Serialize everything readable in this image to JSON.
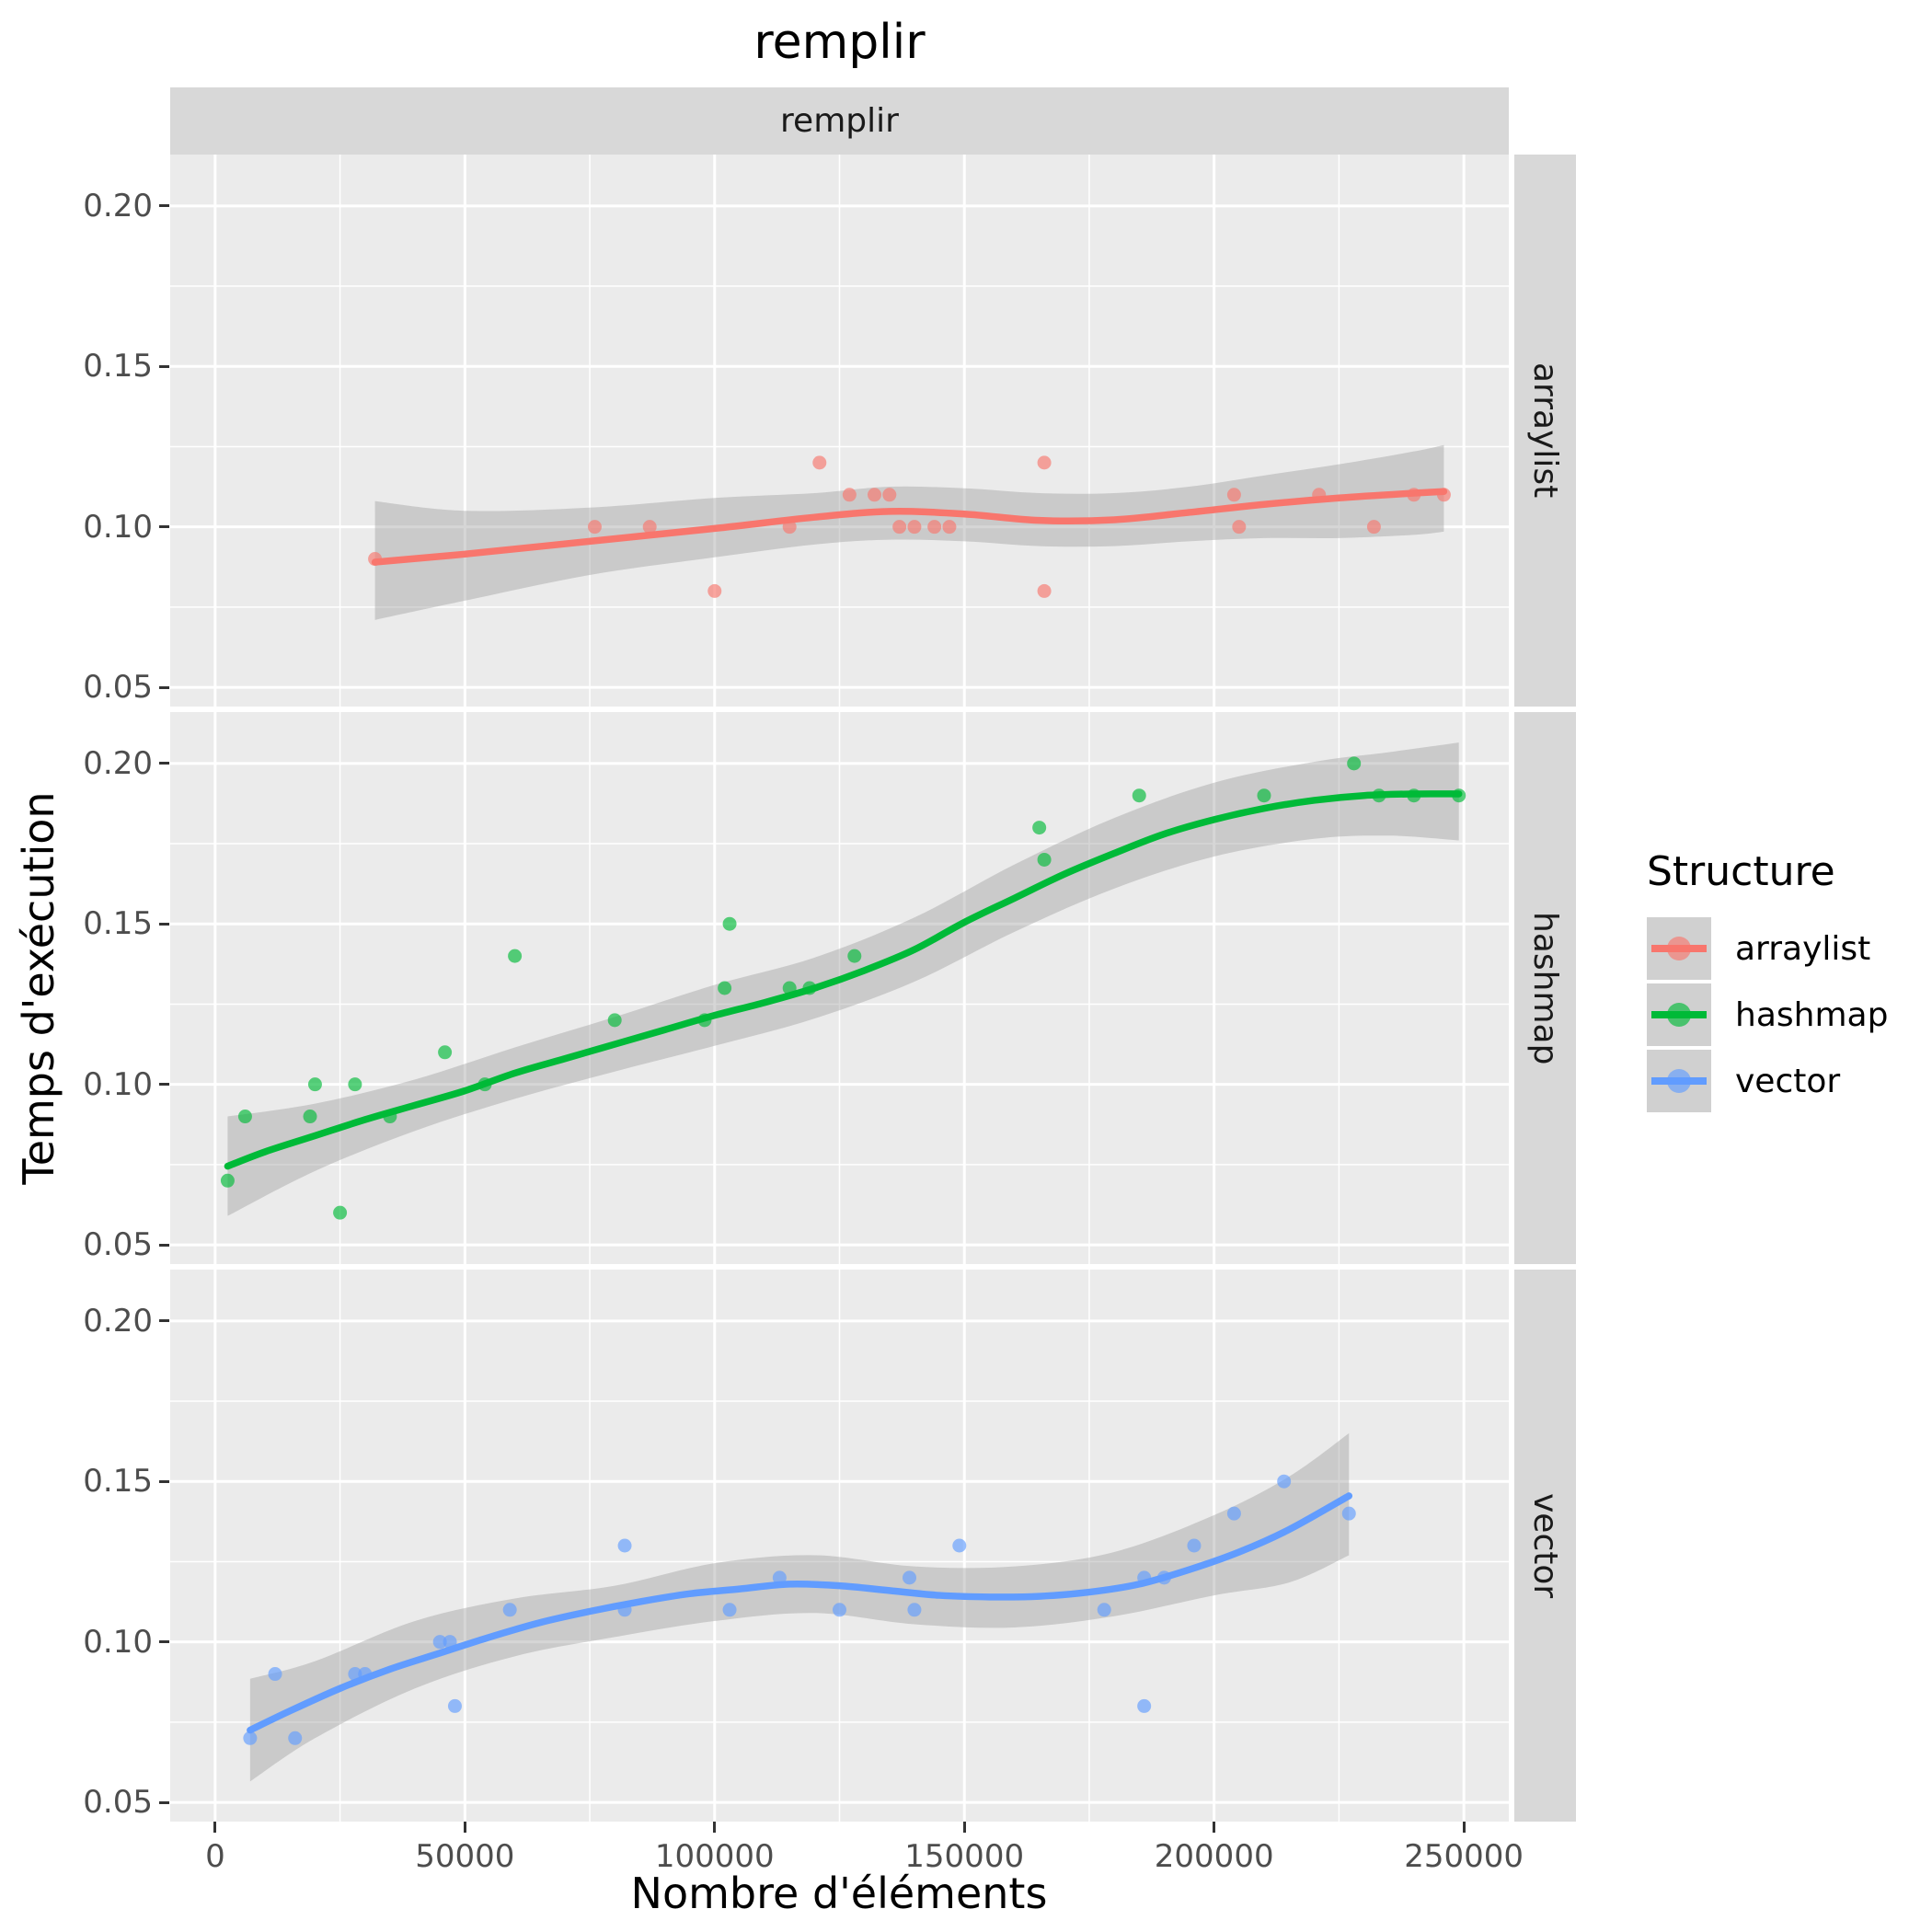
{
  "chart_data": {
    "type": "scatter",
    "title": "remplir",
    "facet_strip": "remplir",
    "xlabel": "Nombre d'éléments",
    "ylabel": "Temps d'exécution",
    "grid": "major+minor",
    "legend": {
      "title": "Structure",
      "position": "right",
      "entries": [
        {
          "label": "arraylist",
          "color": "#F8766D"
        },
        {
          "label": "hashmap",
          "color": "#00BA38"
        },
        {
          "label": "vector",
          "color": "#619CFF"
        }
      ]
    },
    "x_axis": {
      "lim": [
        -9000,
        259000
      ],
      "ticks": [
        0,
        50000,
        100000,
        150000,
        200000,
        250000
      ],
      "tick_labels": [
        "0",
        "50000",
        "100000",
        "150000",
        "200000",
        "250000"
      ],
      "minor_ticks": [
        25000,
        75000,
        125000,
        175000,
        225000
      ]
    },
    "y_axis": {
      "lim": [
        0.044,
        0.216
      ],
      "ticks": [
        0.2,
        0.15,
        0.1,
        0.05
      ],
      "tick_labels": [
        "0.20",
        "0.15",
        "0.10",
        "0.05"
      ],
      "minor_ticks": [
        0.175,
        0.125,
        0.075
      ]
    },
    "facets": [
      {
        "label": "arraylist",
        "color": "#F8766D",
        "points": [
          [
            32000,
            0.09
          ],
          [
            76000,
            0.1
          ],
          [
            87000,
            0.1
          ],
          [
            100000,
            0.08
          ],
          [
            115000,
            0.1
          ],
          [
            121000,
            0.12
          ],
          [
            127000,
            0.11
          ],
          [
            132000,
            0.11
          ],
          [
            135000,
            0.11
          ],
          [
            137000,
            0.1
          ],
          [
            140000,
            0.1
          ],
          [
            144000,
            0.1
          ],
          [
            147000,
            0.1
          ],
          [
            166000,
            0.12
          ],
          [
            166000,
            0.08
          ],
          [
            204000,
            0.11
          ],
          [
            205000,
            0.1
          ],
          [
            221000,
            0.11
          ],
          [
            232000,
            0.1
          ],
          [
            240000,
            0.11
          ],
          [
            246000,
            0.11
          ]
        ],
        "curve": [
          [
            32000,
            0.089
          ],
          [
            50000,
            0.0915
          ],
          [
            75000,
            0.0955
          ],
          [
            100000,
            0.0995
          ],
          [
            120000,
            0.103
          ],
          [
            135000,
            0.1048
          ],
          [
            150000,
            0.104
          ],
          [
            165000,
            0.102
          ],
          [
            180000,
            0.1022
          ],
          [
            195000,
            0.1045
          ],
          [
            210000,
            0.107
          ],
          [
            225000,
            0.109
          ],
          [
            240000,
            0.1105
          ],
          [
            246000,
            0.111
          ]
        ],
        "ribbon": [
          [
            32000,
            0.071,
            0.108
          ],
          [
            50000,
            0.077,
            0.105
          ],
          [
            75000,
            0.085,
            0.106
          ],
          [
            100000,
            0.0905,
            0.109
          ],
          [
            120000,
            0.0945,
            0.1105
          ],
          [
            135000,
            0.096,
            0.1125
          ],
          [
            150000,
            0.0955,
            0.112
          ],
          [
            165000,
            0.094,
            0.1105
          ],
          [
            180000,
            0.094,
            0.1105
          ],
          [
            195000,
            0.0955,
            0.1125
          ],
          [
            210000,
            0.0965,
            0.116
          ],
          [
            225000,
            0.0965,
            0.1195
          ],
          [
            240000,
            0.0975,
            0.1235
          ],
          [
            246000,
            0.0985,
            0.1255
          ]
        ]
      },
      {
        "label": "hashmap",
        "color": "#00BA38",
        "points": [
          [
            2500,
            0.07
          ],
          [
            6000,
            0.09
          ],
          [
            19000,
            0.09
          ],
          [
            20000,
            0.1
          ],
          [
            25000,
            0.06
          ],
          [
            28000,
            0.1
          ],
          [
            35000,
            0.09
          ],
          [
            46000,
            0.11
          ],
          [
            54000,
            0.1
          ],
          [
            60000,
            0.14
          ],
          [
            80000,
            0.12
          ],
          [
            98000,
            0.12
          ],
          [
            102000,
            0.13
          ],
          [
            103000,
            0.15
          ],
          [
            115000,
            0.13
          ],
          [
            119000,
            0.13
          ],
          [
            128000,
            0.14
          ],
          [
            165000,
            0.18
          ],
          [
            166000,
            0.17
          ],
          [
            185000,
            0.19
          ],
          [
            210000,
            0.19
          ],
          [
            228000,
            0.2
          ],
          [
            233000,
            0.19
          ],
          [
            240000,
            0.19
          ],
          [
            249000,
            0.19
          ]
        ],
        "curve": [
          [
            2500,
            0.0745
          ],
          [
            10000,
            0.079
          ],
          [
            20000,
            0.084
          ],
          [
            30000,
            0.089
          ],
          [
            40000,
            0.0935
          ],
          [
            50000,
            0.098
          ],
          [
            60000,
            0.1035
          ],
          [
            70000,
            0.108
          ],
          [
            80000,
            0.1125
          ],
          [
            90000,
            0.117
          ],
          [
            100000,
            0.1215
          ],
          [
            110000,
            0.1255
          ],
          [
            120000,
            0.13
          ],
          [
            130000,
            0.1355
          ],
          [
            140000,
            0.142
          ],
          [
            150000,
            0.1505
          ],
          [
            160000,
            0.158
          ],
          [
            170000,
            0.1655
          ],
          [
            180000,
            0.172
          ],
          [
            190000,
            0.178
          ],
          [
            200000,
            0.1825
          ],
          [
            210000,
            0.186
          ],
          [
            220000,
            0.1885
          ],
          [
            230000,
            0.19
          ],
          [
            240000,
            0.1905
          ],
          [
            249000,
            0.1905
          ]
        ],
        "ribbon": [
          [
            2500,
            0.059,
            0.09
          ],
          [
            20000,
            0.073,
            0.094
          ],
          [
            40000,
            0.0855,
            0.1015
          ],
          [
            60000,
            0.0955,
            0.1115
          ],
          [
            80000,
            0.104,
            0.121
          ],
          [
            100000,
            0.112,
            0.131
          ],
          [
            120000,
            0.1205,
            0.1395
          ],
          [
            140000,
            0.132,
            0.152
          ],
          [
            160000,
            0.1475,
            0.1685
          ],
          [
            180000,
            0.161,
            0.183
          ],
          [
            200000,
            0.171,
            0.194
          ],
          [
            220000,
            0.1765,
            0.2005
          ],
          [
            235000,
            0.1775,
            0.2035
          ],
          [
            249000,
            0.176,
            0.2065
          ]
        ]
      },
      {
        "label": "vector",
        "color": "#619CFF",
        "points": [
          [
            7000,
            0.07
          ],
          [
            12000,
            0.09
          ],
          [
            16000,
            0.07
          ],
          [
            28000,
            0.09
          ],
          [
            30000,
            0.09
          ],
          [
            45000,
            0.1
          ],
          [
            47000,
            0.1
          ],
          [
            48000,
            0.08
          ],
          [
            59000,
            0.11
          ],
          [
            82000,
            0.11
          ],
          [
            82000,
            0.13
          ],
          [
            103000,
            0.11
          ],
          [
            113000,
            0.12
          ],
          [
            125000,
            0.11
          ],
          [
            139000,
            0.12
          ],
          [
            140000,
            0.11
          ],
          [
            149000,
            0.13
          ],
          [
            178000,
            0.11
          ],
          [
            186000,
            0.08
          ],
          [
            186000,
            0.12
          ],
          [
            190000,
            0.12
          ],
          [
            196000,
            0.13
          ],
          [
            204000,
            0.14
          ],
          [
            214000,
            0.15
          ],
          [
            227000,
            0.14
          ]
        ],
        "curve": [
          [
            7000,
            0.0725
          ],
          [
            15000,
            0.0785
          ],
          [
            25000,
            0.0855
          ],
          [
            35000,
            0.0915
          ],
          [
            45000,
            0.0965
          ],
          [
            55000,
            0.1015
          ],
          [
            65000,
            0.106
          ],
          [
            75000,
            0.1095
          ],
          [
            85000,
            0.1125
          ],
          [
            95000,
            0.115
          ],
          [
            105000,
            0.1165
          ],
          [
            115000,
            0.118
          ],
          [
            125000,
            0.1175
          ],
          [
            135000,
            0.116
          ],
          [
            145000,
            0.1145
          ],
          [
            155000,
            0.114
          ],
          [
            165000,
            0.1142
          ],
          [
            175000,
            0.1155
          ],
          [
            185000,
            0.118
          ],
          [
            195000,
            0.1225
          ],
          [
            205000,
            0.128
          ],
          [
            215000,
            0.135
          ],
          [
            227000,
            0.1455
          ]
        ],
        "ribbon": [
          [
            7000,
            0.0565,
            0.0885
          ],
          [
            20000,
            0.07,
            0.094
          ],
          [
            40000,
            0.0855,
            0.1065
          ],
          [
            60000,
            0.0955,
            0.1135
          ],
          [
            80000,
            0.1015,
            0.1175
          ],
          [
            100000,
            0.1065,
            0.1245
          ],
          [
            120000,
            0.109,
            0.127
          ],
          [
            140000,
            0.1055,
            0.1235
          ],
          [
            160000,
            0.1045,
            0.1235
          ],
          [
            180000,
            0.108,
            0.128
          ],
          [
            200000,
            0.1145,
            0.1395
          ],
          [
            215000,
            0.1185,
            0.1515
          ],
          [
            227000,
            0.127,
            0.165
          ]
        ]
      }
    ],
    "style": {
      "panel_bg": "#EBEBEB",
      "strip_bg": "#D8D8D8",
      "grid_color": "#FFFFFF",
      "ribbon_color": "#999999",
      "ribbon_opacity": 0.4,
      "point_opacity": 0.65,
      "tick_text_color": "#4D4D4D"
    }
  }
}
